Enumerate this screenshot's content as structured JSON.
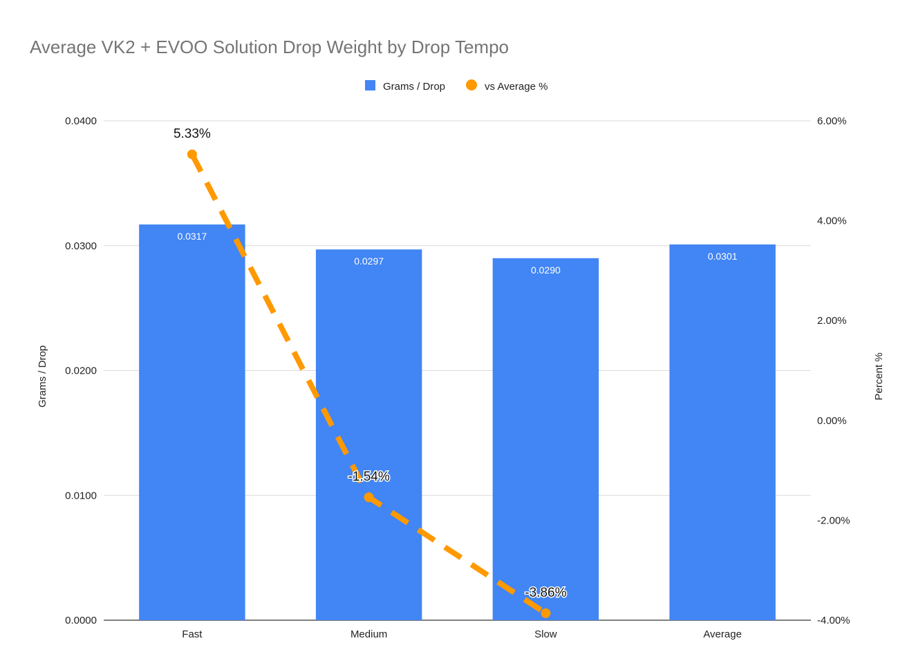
{
  "chart_data": {
    "type": "bar",
    "title": "Average VK2 + EVOO Solution Drop Weight by Drop Tempo",
    "categories": [
      "Fast",
      "Medium",
      "Slow",
      "Average"
    ],
    "series": [
      {
        "name": "Grams / Drop",
        "type": "bar",
        "axis": "left",
        "values": [
          0.0317,
          0.0297,
          0.029,
          0.0301
        ],
        "labels": [
          "0.0317",
          "0.0297",
          "0.0290",
          "0.0301"
        ],
        "color": "#4285F4"
      },
      {
        "name": "vs Average %",
        "type": "line",
        "axis": "right",
        "line_style": "dashed",
        "values": [
          5.33,
          -1.54,
          -3.86,
          null
        ],
        "labels": [
          "5.33%",
          "-1.54%",
          "-3.86%",
          null
        ],
        "color": "#FF9900"
      }
    ],
    "ylabel": "Grams / Drop",
    "ylim": [
      0,
      0.04
    ],
    "yticks": [
      "0.0000",
      "0.0100",
      "0.0200",
      "0.0300",
      "0.0400"
    ],
    "y2label": "Percent %",
    "y2lim": [
      -4,
      6
    ],
    "y2ticks": [
      "-4.00%",
      "-2.00%",
      "0.00%",
      "2.00%",
      "4.00%",
      "6.00%"
    ],
    "grid": true,
    "legend_position": "top"
  }
}
